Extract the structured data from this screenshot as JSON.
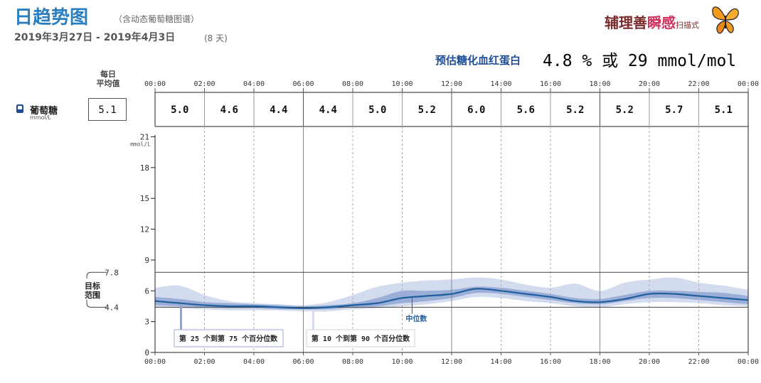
{
  "header": {
    "title": "日趋势图",
    "subtitle": "（含动态葡萄糖图谱）",
    "date_range": "2019年3月27日 - 2019年4月3日",
    "days": "(8 天)",
    "brand_part1": "辅理善",
    "brand_part2": "瞬感",
    "brand_part3": "扫描式"
  },
  "a1c": {
    "label": "预估糖化血红蛋白",
    "value": "4.8 % 或 29 mmol/mol"
  },
  "daily_average": {
    "header_line1": "每日",
    "header_line2": "平均值",
    "metric_label": "葡萄糖",
    "unit": "mmol/L",
    "value": "5.1"
  },
  "target_range": {
    "label_line1": "目标",
    "label_line2": "范围",
    "low": "4.4",
    "high": "7.8"
  },
  "legend": {
    "iqr": "第 25 个到第 75 个百分位数",
    "outer": "第 10 个到第 90 个百分位数",
    "median": "中位数"
  },
  "colors": {
    "accent": "#2a7fc0",
    "median_line": "#1f5f9e",
    "iqr_band": "#8fa6d4",
    "outer_band": "#d3dbee"
  },
  "chart_data": {
    "type": "area",
    "x_ticks": [
      "00:00",
      "02:00",
      "04:00",
      "06:00",
      "08:00",
      "10:00",
      "12:00",
      "14:00",
      "16:00",
      "18:00",
      "20:00",
      "22:00",
      "00:00"
    ],
    "y_ticks": [
      0,
      3,
      6,
      9,
      12,
      15,
      18,
      21
    ],
    "y_unit": "mmol/L",
    "ylim": [
      0,
      22
    ],
    "xlim_hours": [
      0,
      24
    ],
    "hourly_averages": {
      "labels": [
        "5.0",
        "4.6",
        "4.4",
        "4.4",
        "5.0",
        "5.2",
        "6.0",
        "5.6",
        "5.2",
        "5.2",
        "5.7",
        "5.1"
      ],
      "values": [
        5.0,
        4.6,
        4.4,
        4.4,
        5.0,
        5.2,
        6.0,
        5.6,
        5.2,
        5.2,
        5.7,
        5.1
      ]
    },
    "target_low": 4.4,
    "target_high": 7.8,
    "series": [
      {
        "name": "中位数",
        "x": [
          0,
          1,
          2,
          3,
          4,
          5,
          6,
          7,
          8,
          9,
          10,
          11,
          12,
          13,
          14,
          15,
          16,
          17,
          18,
          19,
          20,
          21,
          22,
          23,
          24
        ],
        "values": [
          5.0,
          4.8,
          4.6,
          4.5,
          4.5,
          4.4,
          4.3,
          4.4,
          4.6,
          4.8,
          5.3,
          5.5,
          5.7,
          6.2,
          6.0,
          5.7,
          5.4,
          5.0,
          4.9,
          5.2,
          5.7,
          5.7,
          5.5,
          5.3,
          5.1
        ]
      },
      {
        "name": "第 25 个到第 75 个百分位数",
        "x": [
          0,
          1,
          2,
          3,
          4,
          5,
          6,
          7,
          8,
          9,
          10,
          11,
          12,
          13,
          14,
          15,
          16,
          17,
          18,
          19,
          20,
          21,
          22,
          23,
          24
        ],
        "low": [
          4.6,
          4.5,
          4.4,
          4.3,
          4.3,
          4.2,
          4.2,
          4.2,
          4.4,
          4.5,
          4.8,
          5.0,
          5.3,
          5.8,
          5.7,
          5.4,
          5.1,
          4.8,
          4.7,
          5.0,
          5.3,
          5.3,
          5.1,
          4.9,
          4.7
        ],
        "high": [
          5.4,
          5.2,
          4.9,
          4.8,
          4.7,
          4.6,
          4.5,
          4.6,
          4.8,
          5.3,
          6.0,
          6.0,
          6.1,
          6.4,
          6.3,
          6.0,
          5.7,
          5.3,
          5.2,
          5.6,
          6.0,
          6.0,
          5.9,
          5.8,
          5.5
        ]
      },
      {
        "name": "第 10 个到第 90 个百分位数",
        "x": [
          0,
          1,
          2,
          3,
          4,
          5,
          6,
          7,
          8,
          9,
          10,
          11,
          12,
          13,
          14,
          15,
          16,
          17,
          18,
          19,
          20,
          21,
          22,
          23,
          24
        ],
        "low": [
          4.4,
          4.3,
          4.2,
          4.1,
          4.1,
          4.1,
          4.0,
          4.0,
          4.2,
          4.3,
          4.5,
          4.7,
          5.0,
          5.4,
          5.3,
          5.0,
          4.8,
          4.5,
          4.4,
          4.7,
          4.9,
          4.9,
          4.8,
          4.6,
          4.5
        ],
        "high": [
          6.3,
          6.5,
          5.6,
          5.0,
          4.8,
          4.7,
          4.6,
          4.9,
          5.6,
          6.4,
          6.8,
          7.0,
          7.1,
          7.3,
          7.1,
          6.6,
          6.3,
          6.7,
          6.0,
          6.8,
          7.1,
          7.3,
          6.8,
          6.5,
          6.1
        ]
      }
    ]
  }
}
